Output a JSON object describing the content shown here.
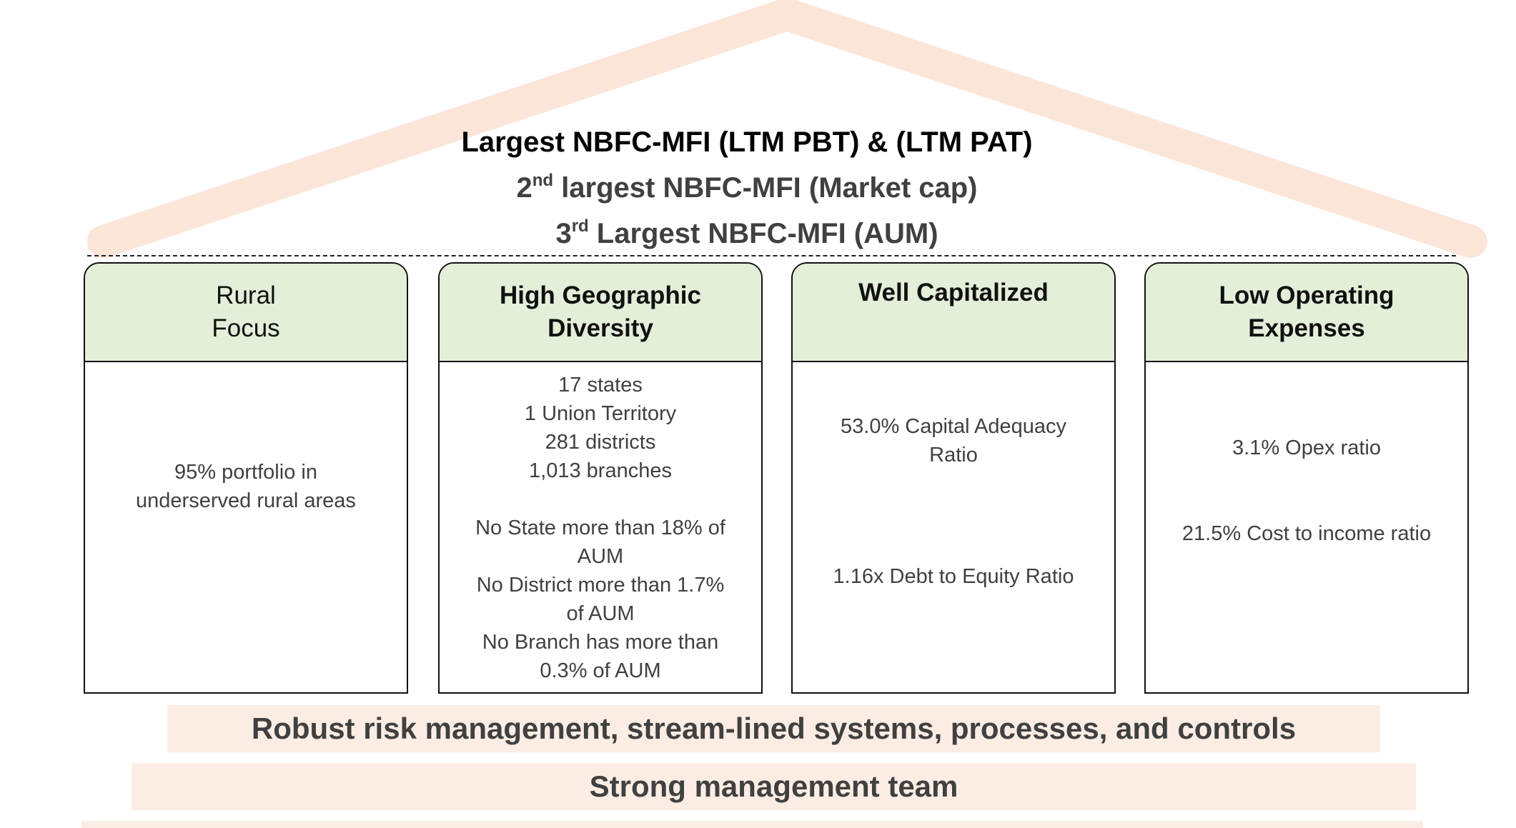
{
  "roof": {
    "color": "#fbe5d9",
    "line1": "Largest NBFC-MFI (LTM PBT) & (LTM PAT)",
    "line2_sup": "nd",
    "line2_prefix": "2",
    "line2_rest": " largest NBFC-MFI (Market cap)",
    "line3_prefix": "3",
    "line3_sup": "rd",
    "line3_rest": " Largest NBFC-MFI (AUM)"
  },
  "pillars": [
    {
      "title_lines": [
        "Rural",
        "Focus"
      ],
      "body_lines": [
        "95% portfolio in",
        "underserved rural areas"
      ]
    },
    {
      "title_lines": [
        "High Geographic",
        "Diversity"
      ],
      "body_lines": [
        "17 states",
        "1 Union Territory",
        "281 districts",
        "1,013 branches",
        "No State more than 18% of",
        "AUM",
        "No District more than 1.7%",
        "of AUM",
        "No Branch has more than",
        "0.3% of AUM"
      ]
    },
    {
      "title_lines": [
        "Well Capitalized"
      ],
      "body_lines": [
        "53.0% Capital Adequacy",
        "Ratio",
        "1.16x Debt to Equity Ratio"
      ]
    },
    {
      "title_lines": [
        "Low Operating",
        "Expenses"
      ],
      "body_lines": [
        "3.1% Opex ratio",
        "21.5% Cost to income ratio"
      ]
    }
  ],
  "foundation": {
    "band1": "Robust risk management, stream-lined systems, processes, and controls",
    "band2": "Strong management team"
  },
  "colors": {
    "pillar_header": "#e3efd9",
    "band": "#fcede4",
    "text_dark": "#404040"
  }
}
